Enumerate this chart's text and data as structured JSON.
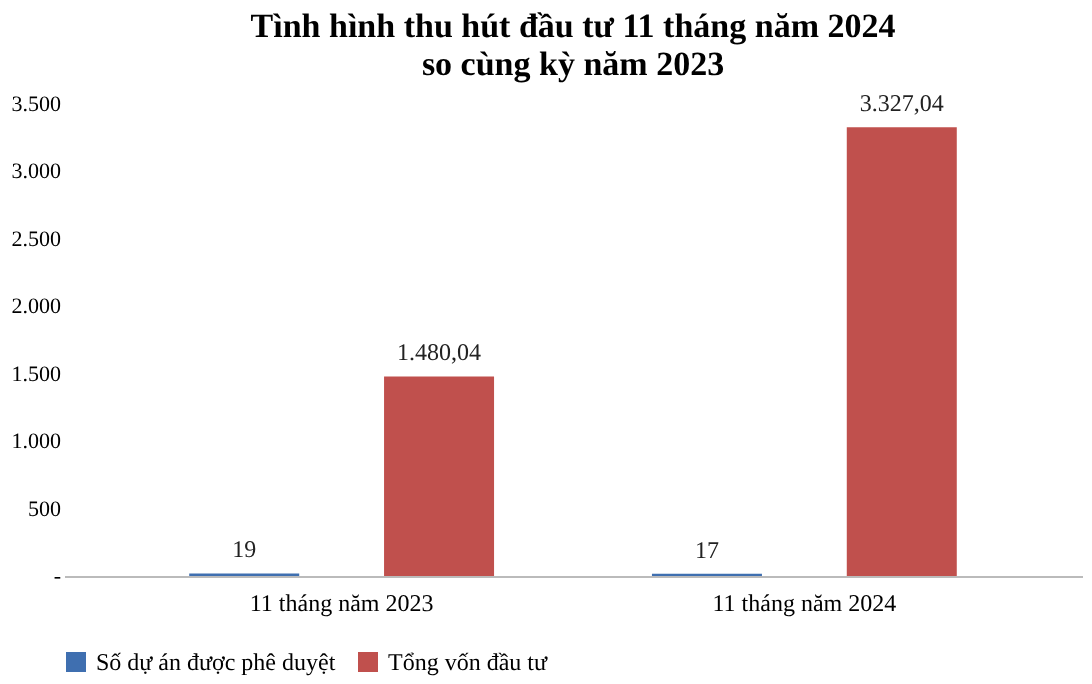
{
  "chart_data": {
    "type": "bar",
    "title": "Tình hình thu hút đầu tư 11 tháng năm 2024\nso cùng kỳ năm 2023",
    "categories": [
      "11 tháng năm 2023",
      "11 tháng năm 2024"
    ],
    "series": [
      {
        "name": "Số dự án được phê duyệt",
        "color": "#3f6fb0",
        "values": [
          19,
          17
        ],
        "value_labels": [
          "19",
          "17"
        ]
      },
      {
        "name": "Tổng vốn đầu tư",
        "color": "#c0504d",
        "values": [
          1480.04,
          3327.04
        ],
        "value_labels": [
          "1.480,04",
          "3.327,04"
        ]
      }
    ],
    "ylim": [
      0,
      3500
    ],
    "yticks": [
      {
        "value": 0,
        "label": "-"
      },
      500,
      {
        "value": 1000,
        "label": "1.000"
      },
      {
        "value": 1500,
        "label": "1.500"
      },
      {
        "value": 2000,
        "label": "2.000"
      },
      {
        "value": 2500,
        "label": "2.500"
      },
      {
        "value": 3000,
        "label": "3.000"
      },
      {
        "value": 3500,
        "label": "3.500"
      }
    ],
    "grid": false,
    "legend": "bottom"
  }
}
